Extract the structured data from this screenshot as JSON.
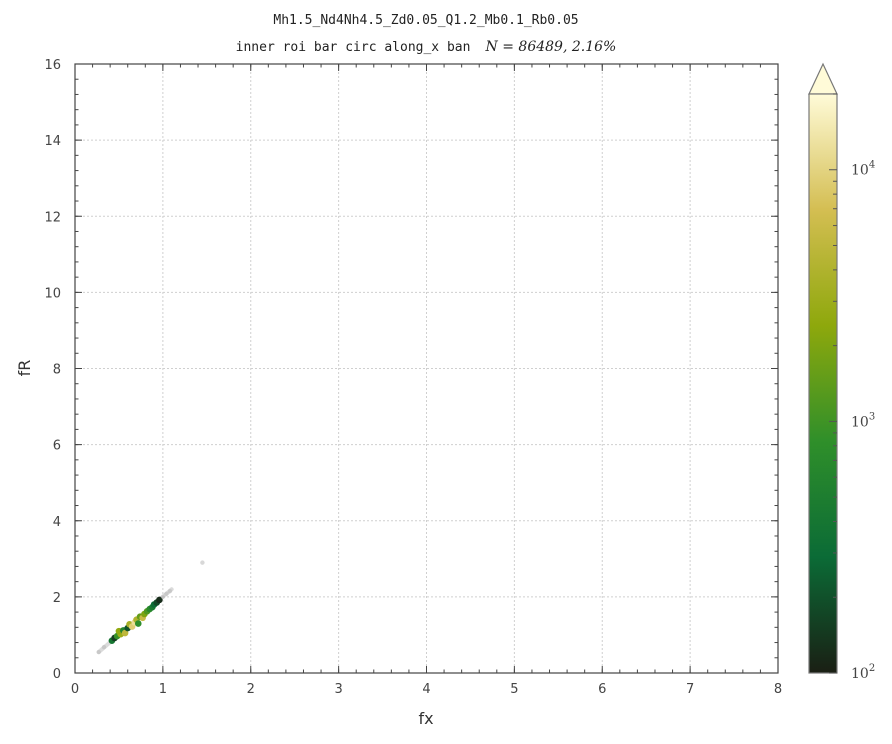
{
  "chart_data": {
    "type": "heatmap",
    "title": "Mh1.5_Nd4Nh4.5_Zd0.05_Q1.2_Mb0.1_Rb0.05",
    "subtitle_text": "inner roi bar circ along_x ban",
    "subtitle_math": "N = 86489,   2.16%",
    "xlabel": "fx",
    "ylabel": "fR",
    "xlim": [
      0,
      8
    ],
    "ylim": [
      0,
      16
    ],
    "x_ticks": [
      "0",
      "1",
      "2",
      "3",
      "4",
      "5",
      "6",
      "7",
      "8"
    ],
    "y_ticks": [
      "0",
      "2",
      "4",
      "6",
      "8",
      "10",
      "12",
      "14",
      "16"
    ],
    "grid": true,
    "colorbar": {
      "scale": "log",
      "range": [
        100,
        20000
      ],
      "extend": "max",
      "tick_labels": [
        {
          "base": "10",
          "exp": "2",
          "value": 100
        },
        {
          "base": "10",
          "exp": "3",
          "value": 1000
        },
        {
          "base": "10",
          "exp": "4",
          "value": 10000
        }
      ],
      "colors": [
        "#1a1f14",
        "#0b6b36",
        "#2f8f2a",
        "#8ea80c",
        "#d4be52",
        "#fffbd8"
      ]
    },
    "points": [
      {
        "x": 0.27,
        "y": 0.55,
        "c": 30
      },
      {
        "x": 0.33,
        "y": 0.68,
        "c": 50
      },
      {
        "x": 0.42,
        "y": 0.85,
        "c": 400
      },
      {
        "x": 0.45,
        "y": 0.92,
        "c": 150
      },
      {
        "x": 0.48,
        "y": 0.97,
        "c": 900
      },
      {
        "x": 0.52,
        "y": 1.02,
        "c": 3000
      },
      {
        "x": 0.5,
        "y": 1.1,
        "c": 2500
      },
      {
        "x": 0.55,
        "y": 1.12,
        "c": 600
      },
      {
        "x": 0.57,
        "y": 1.05,
        "c": 5000
      },
      {
        "x": 0.6,
        "y": 1.18,
        "c": 200
      },
      {
        "x": 0.62,
        "y": 1.28,
        "c": 3500
      },
      {
        "x": 0.65,
        "y": 1.22,
        "c": 9000
      },
      {
        "x": 0.68,
        "y": 1.33,
        "c": 12000
      },
      {
        "x": 0.7,
        "y": 1.4,
        "c": 4000
      },
      {
        "x": 0.72,
        "y": 1.3,
        "c": 800
      },
      {
        "x": 0.74,
        "y": 1.48,
        "c": 1500
      },
      {
        "x": 0.77,
        "y": 1.45,
        "c": 6000
      },
      {
        "x": 0.79,
        "y": 1.55,
        "c": 2000
      },
      {
        "x": 0.82,
        "y": 1.62,
        "c": 1200
      },
      {
        "x": 0.85,
        "y": 1.68,
        "c": 700
      },
      {
        "x": 0.88,
        "y": 1.73,
        "c": 450
      },
      {
        "x": 0.9,
        "y": 1.8,
        "c": 300
      },
      {
        "x": 0.93,
        "y": 1.85,
        "c": 180
      },
      {
        "x": 0.96,
        "y": 1.92,
        "c": 120
      },
      {
        "x": 1.0,
        "y": 2.0,
        "c": 60
      },
      {
        "x": 1.04,
        "y": 2.08,
        "c": 35
      },
      {
        "x": 1.08,
        "y": 2.15,
        "c": 20
      },
      {
        "x": 1.45,
        "y": 2.9,
        "c": 15
      }
    ]
  }
}
